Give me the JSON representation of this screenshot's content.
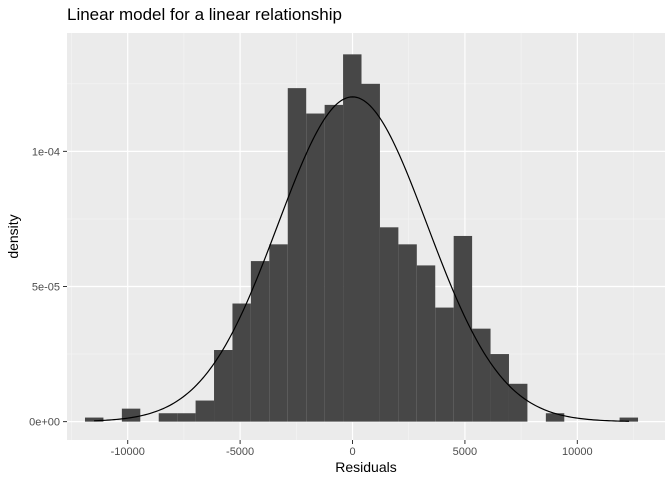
{
  "chart_data": {
    "type": "bar",
    "title": "Linear model for a linear relationship",
    "xlabel": "Residuals",
    "ylabel": "density",
    "xlim": [
      -12700,
      13900
    ],
    "ylim": [
      -6.8e-06,
      0.0001438
    ],
    "x_ticks": [
      {
        "value": -10000,
        "label": "-10000"
      },
      {
        "value": -5000,
        "label": "-5000"
      },
      {
        "value": 0,
        "label": "0"
      },
      {
        "value": 5000,
        "label": "5000"
      },
      {
        "value": 10000,
        "label": "10000"
      }
    ],
    "y_ticks": [
      {
        "value": 0,
        "label": "0e+00"
      },
      {
        "value": 5e-05,
        "label": "5e-05"
      },
      {
        "value": 0.0001,
        "label": "1e-04"
      }
    ],
    "grid": true,
    "bin_width": 820,
    "series": [
      {
        "kind": "histogram",
        "color": "#474747",
        "bins": [
          {
            "x0": -11900,
            "x1": -11080,
            "density": 1.5e-06
          },
          {
            "x0": -11080,
            "x1": -10260,
            "density": 0
          },
          {
            "x0": -10260,
            "x1": -9440,
            "density": 4.8e-06
          },
          {
            "x0": -9440,
            "x1": -8620,
            "density": 0
          },
          {
            "x0": -8620,
            "x1": -7800,
            "density": 3.1e-06
          },
          {
            "x0": -7800,
            "x1": -6980,
            "density": 3.1e-06
          },
          {
            "x0": -6980,
            "x1": -6160,
            "density": 7.8e-06
          },
          {
            "x0": -6160,
            "x1": -5340,
            "density": 2.65e-05
          },
          {
            "x0": -5340,
            "x1": -4520,
            "density": 4.37e-05
          },
          {
            "x0": -4520,
            "x1": -3700,
            "density": 5.94e-05
          },
          {
            "x0": -3700,
            "x1": -2880,
            "density": 6.56e-05
          },
          {
            "x0": -2880,
            "x1": -2060,
            "density": 0.0001234
          },
          {
            "x0": -2060,
            "x1": -1240,
            "density": 0.000114
          },
          {
            "x0": -1240,
            "x1": -420,
            "density": 0.0001172
          },
          {
            "x0": -420,
            "x1": 400,
            "density": 0.0001359
          },
          {
            "x0": 400,
            "x1": 1220,
            "density": 0.000125
          },
          {
            "x0": 1220,
            "x1": 2040,
            "density": 7.19e-05
          },
          {
            "x0": 2040,
            "x1": 2860,
            "density": 6.56e-05
          },
          {
            "x0": 2860,
            "x1": 3680,
            "density": 5.78e-05
          },
          {
            "x0": 3680,
            "x1": 4500,
            "density": 4.22e-05
          },
          {
            "x0": 4500,
            "x1": 5320,
            "density": 6.87e-05
          },
          {
            "x0": 5320,
            "x1": 6140,
            "density": 3.44e-05
          },
          {
            "x0": 6140,
            "x1": 6960,
            "density": 2.5e-05
          },
          {
            "x0": 6960,
            "x1": 7780,
            "density": 1.4e-05
          },
          {
            "x0": 7780,
            "x1": 8600,
            "density": 0
          },
          {
            "x0": 8600,
            "x1": 9420,
            "density": 3.1e-06
          },
          {
            "x0": 9420,
            "x1": 10240,
            "density": 0
          },
          {
            "x0": 10240,
            "x1": 11060,
            "density": 0
          },
          {
            "x0": 11060,
            "x1": 11880,
            "density": 0
          },
          {
            "x0": 11880,
            "x1": 12700,
            "density": 1.5e-06
          }
        ]
      },
      {
        "kind": "normal-density-curve",
        "color": "#000000",
        "mean": 0,
        "sd": 3320,
        "x_range": [
          -11500,
          12300
        ]
      }
    ]
  }
}
